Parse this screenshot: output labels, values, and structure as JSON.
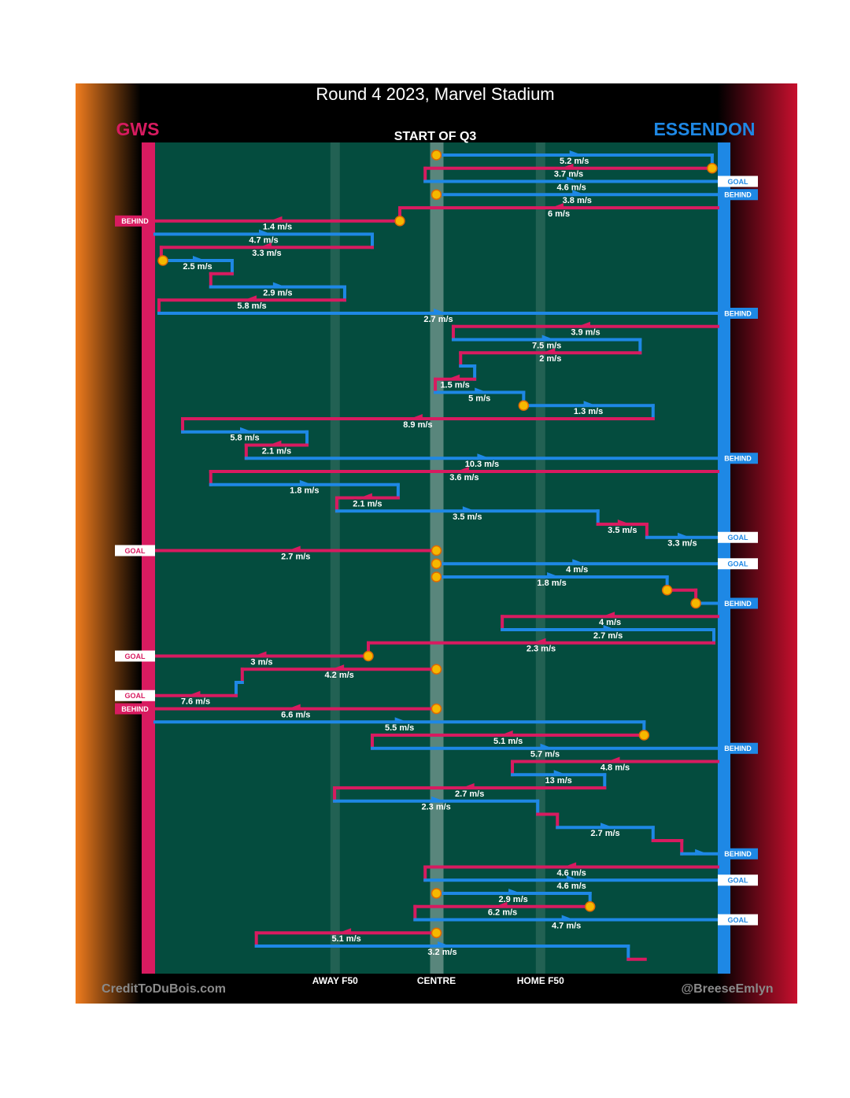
{
  "title": "Round 4 2023, Marvel Stadium",
  "subtitle": "START OF Q3",
  "teams": {
    "left": {
      "name": "GWS",
      "color": "#d81b60"
    },
    "right": {
      "name": "ESSENDON",
      "color": "#1e88e5"
    }
  },
  "zones": [
    {
      "label": "AWAY F50",
      "position": 32
    },
    {
      "label": "CENTRE",
      "position": 50
    },
    {
      "label": "HOME F50",
      "position": 68.5
    }
  ],
  "credits": {
    "left": "CreditToDuBois.com",
    "right": "@BreeseEmlyn"
  },
  "rows": [
    {
      "team": "right",
      "from": 50,
      "to": 99,
      "speed": "5.2 m/s",
      "stoppage": true
    },
    {
      "team": "left",
      "from": 99,
      "to": 48,
      "speed": "3.7 m/s",
      "stoppage": true
    },
    {
      "team": "right",
      "from": 48,
      "to": 100,
      "speed": "4.6 m/s",
      "end": "GOAL"
    },
    {
      "team": "right",
      "from": 50,
      "to": 100,
      "speed": "3.8 m/s",
      "stoppage": true,
      "end": "BEHIND"
    },
    {
      "team": "left",
      "from": 100,
      "to": 43.5,
      "speed": "6 m/s"
    },
    {
      "team": "left",
      "from": 43.5,
      "to": 0,
      "speed": "1.4 m/s",
      "stoppage": true,
      "end": "BEHIND"
    },
    {
      "team": "right",
      "from": 0,
      "to": 38.6,
      "speed": "4.7 m/s"
    },
    {
      "team": "left",
      "from": 38.6,
      "to": 1.1,
      "speed": "3.3 m/s"
    },
    {
      "team": "right",
      "from": 1.4,
      "to": 13.7,
      "speed": "2.5 m/s",
      "stoppage": true
    },
    {
      "team": "left",
      "from": 13.7,
      "to": 9.9
    },
    {
      "team": "right",
      "from": 9.9,
      "to": 33.7,
      "speed": "2.9 m/s"
    },
    {
      "team": "left",
      "from": 33.7,
      "to": 0.7,
      "speed": "5.8 m/s"
    },
    {
      "team": "right",
      "from": 0.7,
      "to": 100,
      "speed": "2.7 m/s",
      "end": "BEHIND"
    },
    {
      "team": "left",
      "from": 100,
      "to": 53,
      "speed": "3.9 m/s"
    },
    {
      "team": "right",
      "from": 53,
      "to": 86.2,
      "speed": "7.5 m/s"
    },
    {
      "team": "left",
      "from": 86.2,
      "to": 54.3,
      "speed": "2 m/s"
    },
    {
      "team": "right",
      "from": 54.3,
      "to": 56.8
    },
    {
      "team": "left",
      "from": 56.8,
      "to": 49.8,
      "speed": "1.5 m/s"
    },
    {
      "team": "right",
      "from": 49.8,
      "to": 65.5,
      "speed": "5 m/s"
    },
    {
      "team": "right",
      "from": 65.5,
      "to": 88.5,
      "speed": "1.3 m/s",
      "stoppage": true
    },
    {
      "team": "left",
      "from": 88.5,
      "to": 4.9,
      "speed": "8.9 m/s"
    },
    {
      "team": "right",
      "from": 4.9,
      "to": 27,
      "speed": "5.8 m/s"
    },
    {
      "team": "left",
      "from": 27,
      "to": 16.2,
      "speed": "2.1 m/s"
    },
    {
      "team": "right",
      "from": 16.2,
      "to": 100,
      "speed": "10.3 m/s",
      "end": "BEHIND"
    },
    {
      "team": "left",
      "from": 100,
      "to": 9.9,
      "speed": "3.6 m/s"
    },
    {
      "team": "right",
      "from": 9.9,
      "to": 43.2,
      "speed": "1.8 m/s"
    },
    {
      "team": "left",
      "from": 43.2,
      "to": 32.3,
      "speed": "2.1 m/s"
    },
    {
      "team": "right",
      "from": 32.3,
      "to": 78.7,
      "speed": "3.5 m/s"
    },
    {
      "team": "left",
      "from": 78.7,
      "to": 87.4,
      "speed": "3.5 m/s"
    },
    {
      "team": "right",
      "from": 87.4,
      "to": 100,
      "speed": "3.3 m/s",
      "end": "GOAL"
    },
    {
      "team": "left",
      "from": 50,
      "to": 0,
      "speed": "2.7 m/s",
      "stoppage": true,
      "end": "GOAL"
    },
    {
      "team": "right",
      "from": 50,
      "to": 100,
      "speed": "4 m/s",
      "stoppage": true,
      "end": "GOAL"
    },
    {
      "team": "right",
      "from": 50,
      "to": 91,
      "speed": "1.8 m/s",
      "stoppage": true
    },
    {
      "team": "left",
      "from": 91,
      "to": 96.1,
      "stoppage": true
    },
    {
      "team": "right",
      "from": 96.1,
      "to": 100,
      "stoppage": true,
      "end": "BEHIND"
    },
    {
      "team": "left",
      "from": 100,
      "to": 61.7,
      "speed": "4 m/s"
    },
    {
      "team": "right",
      "from": 61.7,
      "to": 99.3,
      "speed": "2.7 m/s"
    },
    {
      "team": "left",
      "from": 99.3,
      "to": 37.9,
      "speed": "2.3 m/s"
    },
    {
      "team": "left",
      "from": 37.9,
      "to": 0,
      "speed": "3 m/s",
      "stoppage": true,
      "end": "GOAL"
    },
    {
      "team": "left",
      "from": 50,
      "to": 15.5,
      "speed": "4.2 m/s",
      "stoppage": true
    },
    {
      "team": "right",
      "from": 15.5,
      "to": 14.4
    },
    {
      "team": "left",
      "from": 14.4,
      "to": 0,
      "speed": "7.6 m/s",
      "end": "GOAL"
    },
    {
      "team": "left",
      "from": 50,
      "to": 0,
      "speed": "6.6 m/s",
      "stoppage": true,
      "end": "BEHIND"
    },
    {
      "team": "right",
      "from": 0,
      "to": 86.9,
      "speed": "5.5 m/s"
    },
    {
      "team": "left",
      "from": 86.9,
      "to": 38.6,
      "speed": "5.1 m/s",
      "stoppage": true
    },
    {
      "team": "right",
      "from": 38.6,
      "to": 100,
      "speed": "5.7 m/s",
      "end": "BEHIND"
    },
    {
      "team": "left",
      "from": 100,
      "to": 63.5,
      "speed": "4.8 m/s"
    },
    {
      "team": "right",
      "from": 63.5,
      "to": 79.9,
      "speed": "13 m/s"
    },
    {
      "team": "left",
      "from": 79.9,
      "to": 31.9,
      "speed": "2.7 m/s"
    },
    {
      "team": "right",
      "from": 31.9,
      "to": 68,
      "speed": "2.3 m/s"
    },
    {
      "team": "left",
      "from": 68,
      "to": 71.5
    },
    {
      "team": "right",
      "from": 71.5,
      "to": 88.5,
      "speed": "2.7 m/s"
    },
    {
      "team": "left",
      "from": 88.5,
      "to": 93.6
    },
    {
      "team": "right",
      "from": 93.6,
      "to": 100,
      "end": "BEHIND"
    },
    {
      "team": "left",
      "from": 100,
      "to": 48,
      "speed": "4.6 m/s"
    },
    {
      "team": "right",
      "from": 48,
      "to": 100,
      "speed": "4.6 m/s",
      "end": "GOAL"
    },
    {
      "team": "right",
      "from": 50,
      "to": 77.3,
      "speed": "2.9 m/s",
      "stoppage": true
    },
    {
      "team": "left",
      "from": 77.3,
      "to": 46.2,
      "speed": "6.2 m/s",
      "stoppage": true
    },
    {
      "team": "right",
      "from": 46.2,
      "to": 100,
      "speed": "4.7 m/s",
      "end": "GOAL"
    },
    {
      "team": "left",
      "from": 50,
      "to": 18,
      "speed": "5.1 m/s",
      "stoppage": true
    },
    {
      "team": "right",
      "from": 18,
      "to": 84.1,
      "speed": "3.2 m/s"
    },
    {
      "team": "left",
      "from": 84.1,
      "to": 87.1
    }
  ]
}
